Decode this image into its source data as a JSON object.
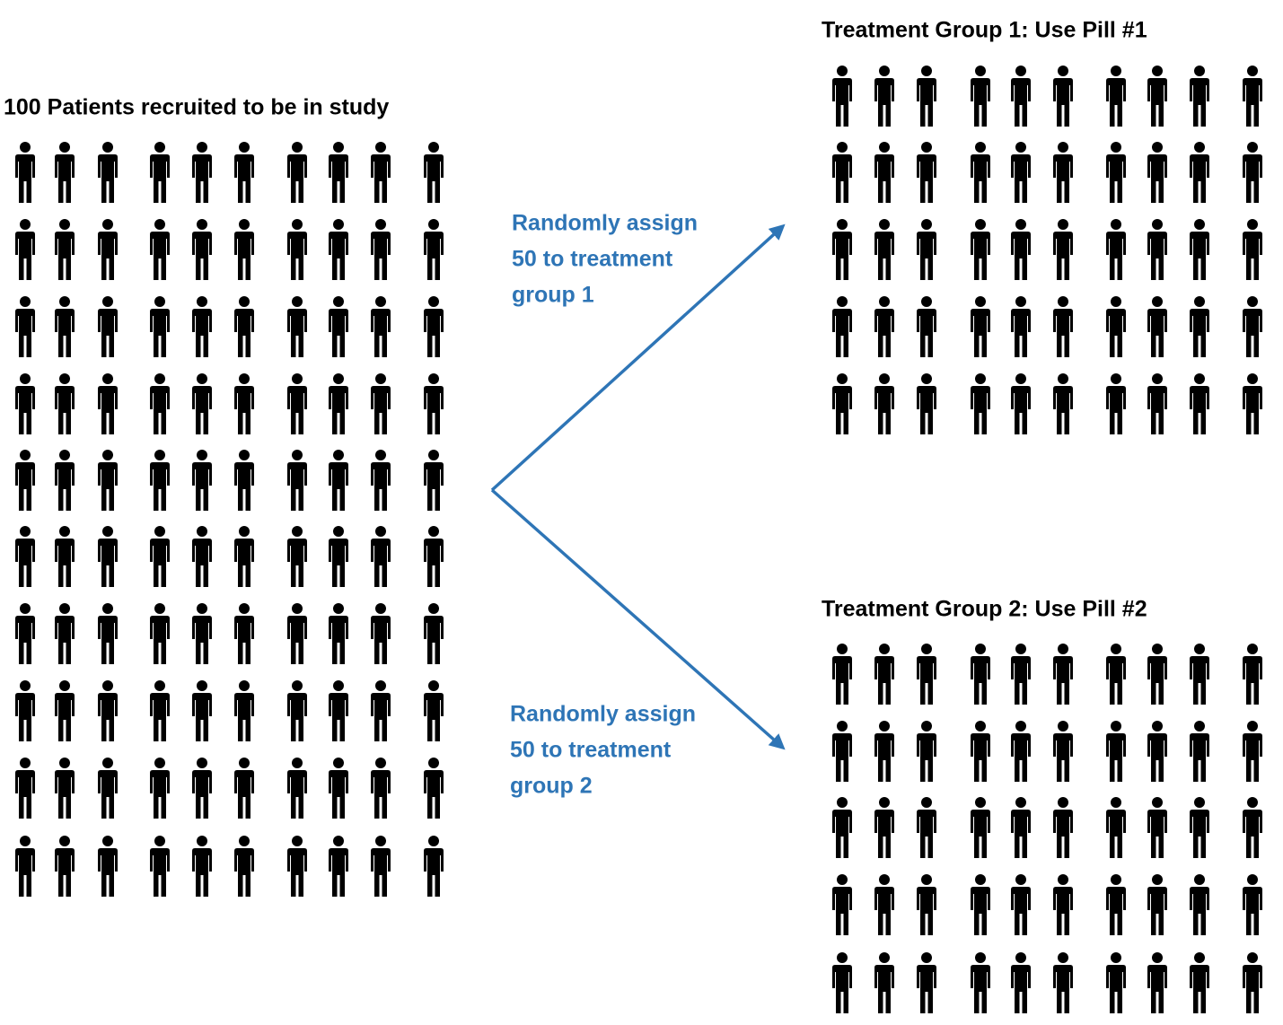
{
  "source": {
    "title": "100 Patients recruited to be in study"
  },
  "arrows": [
    {
      "label_lines": [
        "Randomly assign",
        "50 to treatment",
        "group 1"
      ]
    },
    {
      "label_lines": [
        "Randomly assign",
        "50 to treatment",
        "group 2"
      ]
    }
  ],
  "groups": [
    {
      "title": "Treatment Group 1: Use Pill #1"
    },
    {
      "title": "Treatment Group 2: Use Pill #2"
    }
  ]
}
